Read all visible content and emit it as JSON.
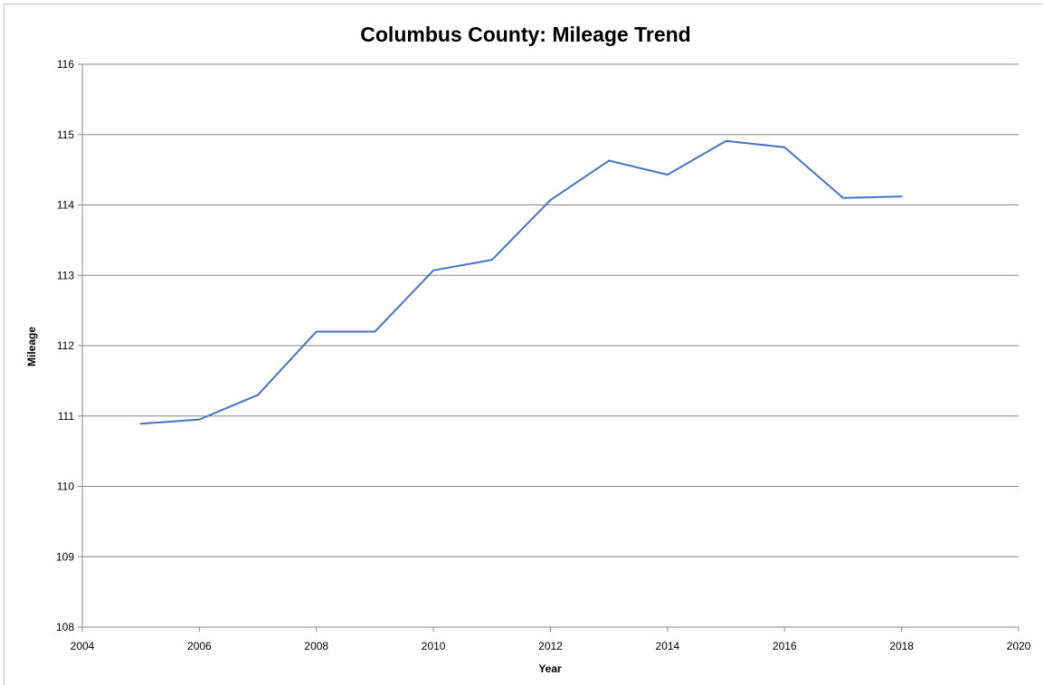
{
  "chart_data": {
    "type": "line",
    "title": "Columbus County: Mileage Trend",
    "xlabel": "Year",
    "ylabel": "Mileage",
    "xlim": [
      2004,
      2020
    ],
    "ylim": [
      108,
      116
    ],
    "x_ticks": [
      "2004",
      "2006",
      "2008",
      "2010",
      "2012",
      "2014",
      "2016",
      "2018",
      "2020"
    ],
    "y_ticks": [
      "108",
      "109",
      "110",
      "111",
      "112",
      "113",
      "114",
      "115",
      "116"
    ],
    "grid": "horizontal",
    "legend": "none",
    "series": [
      {
        "color": "#4472c4",
        "x": [
          2005,
          2006,
          2007,
          2008,
          2009,
          2010,
          2011,
          2012,
          2013,
          2014,
          2015,
          2016,
          2017,
          2018
        ],
        "y": [
          110.89,
          110.95,
          111.3,
          112.2,
          112.2,
          113.07,
          113.22,
          114.07,
          114.63,
          114.43,
          114.91,
          114.82,
          114.1,
          114.12
        ]
      }
    ]
  }
}
